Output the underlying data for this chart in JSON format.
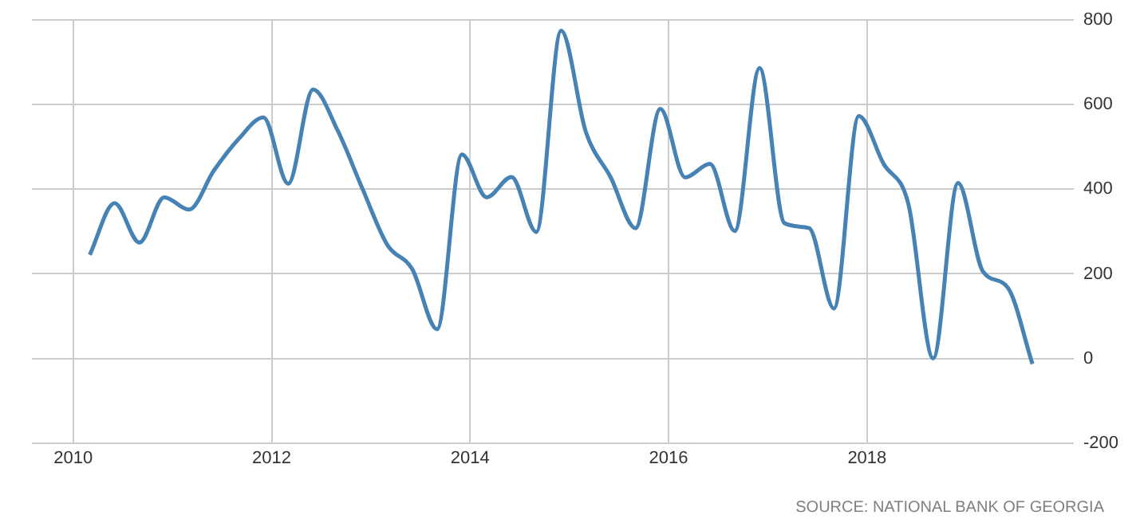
{
  "chart_data": {
    "type": "line",
    "x": [
      "2010-03",
      "2010-06",
      "2010-09",
      "2010-12",
      "2011-03",
      "2011-06",
      "2011-09",
      "2011-12",
      "2012-03",
      "2012-06",
      "2012-09",
      "2012-12",
      "2013-03",
      "2013-06",
      "2013-09",
      "2013-12",
      "2014-03",
      "2014-06",
      "2014-09",
      "2014-12",
      "2015-03",
      "2015-06",
      "2015-09",
      "2015-12",
      "2016-03",
      "2016-06",
      "2016-09",
      "2016-12",
      "2017-03",
      "2017-06",
      "2017-09",
      "2017-12",
      "2018-03",
      "2018-06",
      "2018-09",
      "2018-12",
      "2019-03",
      "2019-06",
      "2019-09"
    ],
    "series": [
      {
        "color": "#4682b4",
        "values": [
          245,
          367,
          274,
          381,
          352,
          444,
          519,
          570,
          413,
          636,
          538,
          400,
          268,
          211,
          69,
          482,
          381,
          429,
          299,
          775,
          535,
          428,
          308,
          590,
          428,
          460,
          301,
          687,
          320,
          308,
          118,
          573,
          460,
          365,
          0,
          415,
          206,
          168,
          -13
        ]
      }
    ],
    "xlim": [
      "2009-08",
      "2020-02"
    ],
    "xticks": [
      "2010",
      "2012",
      "2014",
      "2016",
      "2018"
    ],
    "ylim": [
      -200,
      800
    ],
    "yticks": [
      -200,
      0,
      200,
      400,
      600,
      800
    ],
    "grid": true,
    "legend": false,
    "marker": "none",
    "line_style": "solid",
    "annotations": [
      "SOURCE: NATIONAL BANK OF GEORGIA"
    ]
  }
}
